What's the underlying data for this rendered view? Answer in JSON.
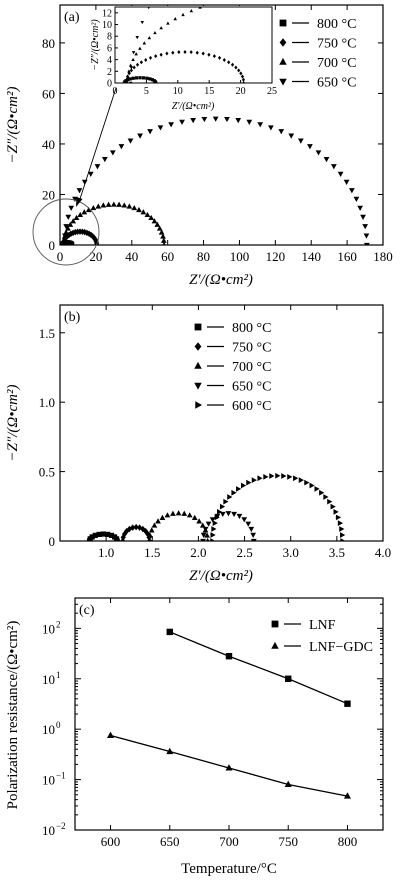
{
  "chart_data": [
    {
      "panel": "(a)",
      "type": "scatter",
      "xlabel": "Z′/(Ω•cm²)",
      "ylabel": "−Z″/(Ω•cm²)",
      "xlim": [
        0,
        180
      ],
      "ylim": [
        0,
        95
      ],
      "xticks": [
        0,
        20,
        40,
        60,
        80,
        100,
        120,
        140,
        160,
        180
      ],
      "yticks": [
        0,
        20,
        40,
        60,
        80
      ],
      "legend": "top-right",
      "series": [
        {
          "name": "800 °C",
          "marker": "square",
          "arc": {
            "x0": 1.5,
            "x1": 6.5,
            "h": 0.9
          }
        },
        {
          "name": "750 °C",
          "marker": "diamond",
          "arc": {
            "x0": 1.8,
            "x1": 20.5,
            "h": 5.3
          }
        },
        {
          "name": "700 °C",
          "marker": "triangle-up",
          "arc": {
            "x0": 2.0,
            "x1": 58.0,
            "h": 16.0
          }
        },
        {
          "name": "650 °C",
          "marker": "triangle-down",
          "arc": {
            "x0": 2.5,
            "x1": 171.0,
            "h": 50.0
          }
        }
      ],
      "inset": {
        "xlabel": "Z′/(Ω•cm²)",
        "ylabel": "−Z″/(Ω•cm²)",
        "xlim": [
          0,
          25
        ],
        "ylim": [
          0,
          13
        ],
        "xticks": [
          0,
          5,
          10,
          15,
          20,
          25
        ],
        "yticks": [
          0,
          2,
          4,
          6,
          8,
          10,
          12
        ]
      }
    },
    {
      "panel": "(b)",
      "type": "scatter",
      "xlabel": "Z′/(Ω•cm²)",
      "ylabel": "−Z″/(Ω•cm²)",
      "xlim": [
        0.5,
        4.0
      ],
      "ylim": [
        0,
        1.7
      ],
      "xticks": [
        1.0,
        1.5,
        2.0,
        2.5,
        3.0,
        3.5,
        4.0
      ],
      "xtick_labels": [
        "1.0",
        "1.5",
        "2.0",
        "2.5",
        "3.0",
        "3.5",
        "4.0"
      ],
      "yticks": [
        0,
        0.5,
        1.0,
        1.5
      ],
      "ytick_labels": [
        "0",
        "0.5",
        "1.0",
        "1.5"
      ],
      "legend": "top-left",
      "series": [
        {
          "name": "800 °C",
          "marker": "square",
          "arc": {
            "x0": 0.82,
            "x1": 1.12,
            "h": 0.05
          }
        },
        {
          "name": "750 °C",
          "marker": "diamond",
          "arc": {
            "x0": 1.18,
            "x1": 1.47,
            "h": 0.1
          }
        },
        {
          "name": "700 °C",
          "marker": "triangle-up",
          "arc": {
            "x0": 1.47,
            "x1": 2.1,
            "h": 0.2
          }
        },
        {
          "name": "650 °C",
          "marker": "triangle-down",
          "arc": {
            "x0": 2.05,
            "x1": 2.6,
            "h": 0.2
          }
        },
        {
          "name": "600 °C",
          "marker": "triangle-right",
          "arc": {
            "x0": 2.15,
            "x1": 3.56,
            "h": 0.47
          }
        }
      ]
    },
    {
      "panel": "(c)",
      "type": "line",
      "xlabel": "Temperature/°C",
      "ylabel": "Polarization resistance/(Ω•cm²)",
      "xlim": [
        570,
        830
      ],
      "ylim": [
        0.01,
        400
      ],
      "yscale": "log",
      "xticks": [
        600,
        650,
        700,
        750,
        800
      ],
      "yticks": [
        0.01,
        0.1,
        1,
        10,
        100
      ],
      "ytick_labels": [
        {
          "base": "10",
          "exp": "−2"
        },
        {
          "base": "10",
          "exp": "−1"
        },
        {
          "base": "10",
          "exp": "0"
        },
        {
          "base": "10",
          "exp": "1"
        },
        {
          "base": "10",
          "exp": "2"
        }
      ],
      "legend": "top-right",
      "series": [
        {
          "name": "LNF",
          "marker": "square",
          "x": [
            650,
            700,
            750,
            800
          ],
          "y": [
            85,
            28,
            10,
            3.2
          ]
        },
        {
          "name": "LNF−GDC",
          "marker": "triangle-up",
          "x": [
            600,
            650,
            700,
            750,
            800
          ],
          "y": [
            0.75,
            0.36,
            0.17,
            0.08,
            0.047
          ]
        }
      ]
    }
  ]
}
